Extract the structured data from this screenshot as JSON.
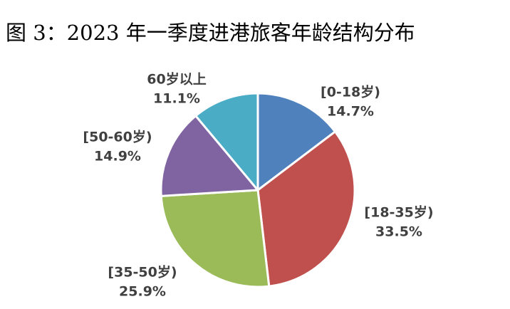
{
  "chart_data": {
    "type": "pie",
    "title": "图 3：2023 年一季度进港旅客年龄结构分布",
    "categories": [
      "[0-18岁)",
      "[18-35岁)",
      "[35-50岁)",
      "[50-60岁)",
      "60岁以上"
    ],
    "values": [
      14.7,
      33.5,
      25.9,
      14.9,
      11.1
    ],
    "value_labels": [
      "14.7%",
      "33.5%",
      "25.9%",
      "14.9%",
      "11.1%"
    ],
    "colors": [
      "#4f81bd",
      "#c0504d",
      "#9bbb59",
      "#8064a2",
      "#4bacc6"
    ]
  }
}
